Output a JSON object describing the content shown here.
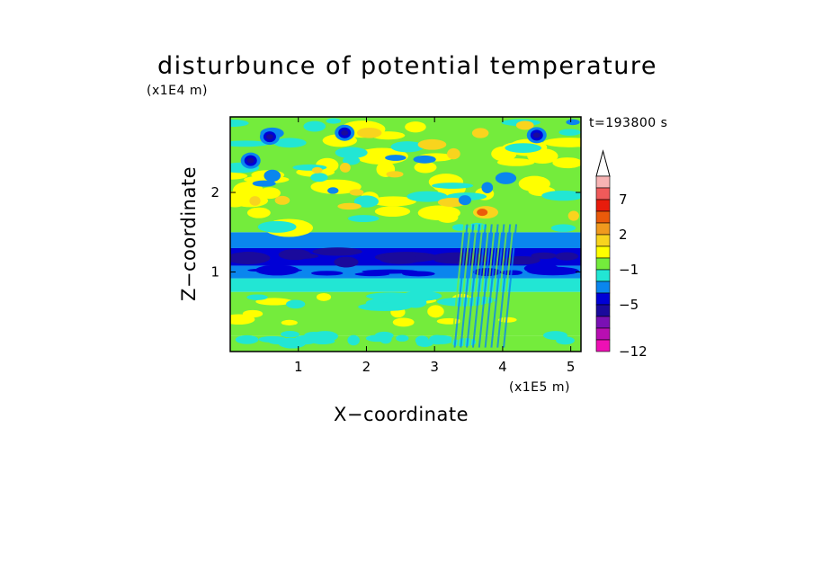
{
  "chart_data": {
    "type": "heatmap",
    "title": "disturbunce of potential temperature",
    "xlabel": "X−coordinate",
    "ylabel": "Z−coordinate",
    "x_unit": "(x1E5 m)",
    "z_unit": "(x1E4 m)",
    "timestamp": "t=193800 s",
    "xlim": [
      0,
      5.15
    ],
    "ylim": [
      0,
      2.95
    ],
    "x_ticks": [
      "1",
      "2",
      "3",
      "4",
      "5"
    ],
    "y_ticks": [
      "1",
      "2"
    ],
    "colorbar": {
      "extend": "max",
      "labels": [
        "7",
        "2",
        "−1",
        "−5",
        "−12"
      ],
      "colors_top_to_bottom": [
        "#f7b4b4",
        "#f05a5a",
        "#e81c0c",
        "#ea5a0a",
        "#f09a1e",
        "#f8d41e",
        "#ffff00",
        "#74ec3c",
        "#22e6d4",
        "#0a86ee",
        "#0000d6",
        "#1a0a9c",
        "#7a10b4",
        "#b80eb2",
        "#ee10b4"
      ]
    },
    "bands_description": [
      {
        "z_from": 0.0,
        "z_to": 0.2,
        "level": "yellow-green"
      },
      {
        "z_from": 0.2,
        "z_to": 0.75,
        "level": "yellow"
      },
      {
        "z_from": 0.75,
        "z_to": 0.92,
        "level": "green"
      },
      {
        "z_from": 0.92,
        "z_to": 1.08,
        "level": "cyan"
      },
      {
        "z_from": 1.08,
        "z_to": 1.3,
        "level": "blue"
      },
      {
        "z_from": 1.3,
        "z_to": 1.5,
        "level": "cyan-green"
      },
      {
        "z_from": 1.5,
        "z_to": 2.95,
        "level": "yellow-orange-mixed"
      }
    ]
  }
}
